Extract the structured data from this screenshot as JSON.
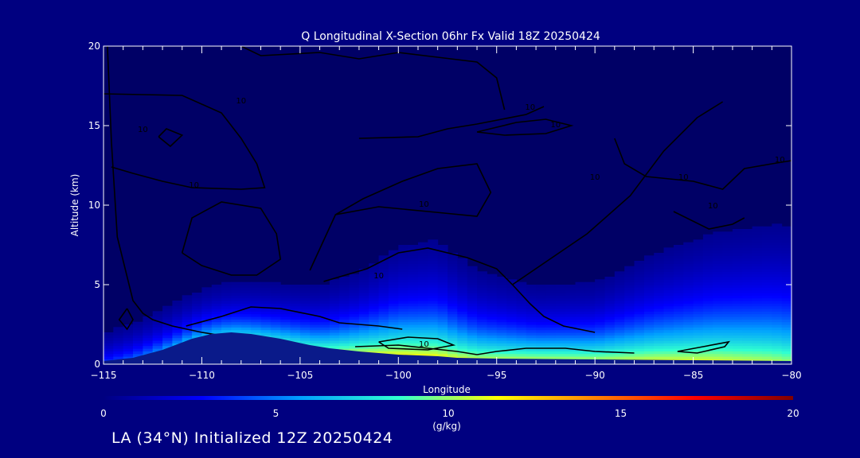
{
  "footer": {
    "text": "LA (34°N) Initialized 12Z 20250424"
  },
  "colors": {
    "background": "#000080",
    "plot_background": "#000066",
    "terrain": "#0a1a8a",
    "contour": "#000000",
    "axis": "#ffffff"
  },
  "chart_data": {
    "type": "heatmap",
    "title": "Q Longitudinal X-Section 06hr  Fx Valid 18Z 20250424",
    "xlabel": "Longitude",
    "ylabel": "Altitude (km)",
    "xlim": [
      -115,
      -80
    ],
    "ylim": [
      0,
      20
    ],
    "x_ticks": [
      -115,
      -110,
      -105,
      -100,
      -95,
      -90,
      -85,
      -80
    ],
    "x_tick_labels": [
      "−115",
      "−110",
      "−105",
      "−100",
      "−95",
      "−90",
      "−85",
      "−80"
    ],
    "y_ticks": [
      0,
      5,
      10,
      15,
      20
    ],
    "y_tick_labels": [
      "0",
      "5",
      "10",
      "15",
      "20"
    ],
    "colorbar": {
      "min": 0,
      "max": 20,
      "ticks": [
        0,
        5,
        10,
        15,
        20
      ],
      "tick_labels": [
        "0",
        "5",
        "10",
        "15",
        "20"
      ],
      "label": "(g/kg)",
      "colormap": [
        "#000080",
        "#0000ff",
        "#00a0ff",
        "#30ffd0",
        "#ffff00",
        "#ff8000",
        "#ff0000",
        "#800000"
      ]
    },
    "contour_labels": [
      "10",
      "10",
      "10",
      "10",
      "10",
      "10",
      "10",
      "10",
      "10",
      "10",
      "10",
      "10"
    ],
    "contour_label_positions": [
      [
        -110.4,
        11.1
      ],
      [
        -108.0,
        16.4
      ],
      [
        -113.0,
        14.6
      ],
      [
        -101.0,
        5.4
      ],
      [
        -98.7,
        9.9
      ],
      [
        -98.7,
        1.1
      ],
      [
        -93.3,
        16.0
      ],
      [
        -92.0,
        14.9
      ],
      [
        -90.0,
        11.6
      ],
      [
        -85.5,
        11.6
      ],
      [
        -84.0,
        9.8
      ],
      [
        -80.6,
        12.7
      ]
    ],
    "terrain_profile": {
      "lon": [
        -115,
        -113.5,
        -112,
        -110.5,
        -109.5,
        -108.5,
        -107.5,
        -106,
        -104.5,
        -103.5,
        -102,
        -100,
        -98,
        -97,
        -95,
        -90,
        -85,
        -80
      ],
      "alt": [
        0.2,
        0.4,
        0.9,
        1.6,
        1.9,
        2.0,
        1.9,
        1.6,
        1.2,
        1.0,
        0.8,
        0.6,
        0.5,
        0.4,
        0.35,
        0.3,
        0.25,
        0.2
      ]
    },
    "moisture_profile": {
      "lon": [
        -115,
        -112,
        -110,
        -106,
        -104,
        -102,
        -100,
        -98,
        -96,
        -93,
        -90,
        -87,
        -84,
        -81,
        -80
      ],
      "q_surface": [
        4,
        6,
        7,
        8,
        9,
        11,
        12,
        12,
        11,
        11,
        11,
        11.5,
        11.5,
        11,
        10.5
      ],
      "moist_top_km": [
        3.0,
        3.4,
        3.6,
        4.0,
        4.2,
        5.0,
        6.5,
        7.0,
        5.5,
        4.6,
        4.8,
        6.5,
        7.8,
        8.5,
        8.6
      ]
    }
  }
}
